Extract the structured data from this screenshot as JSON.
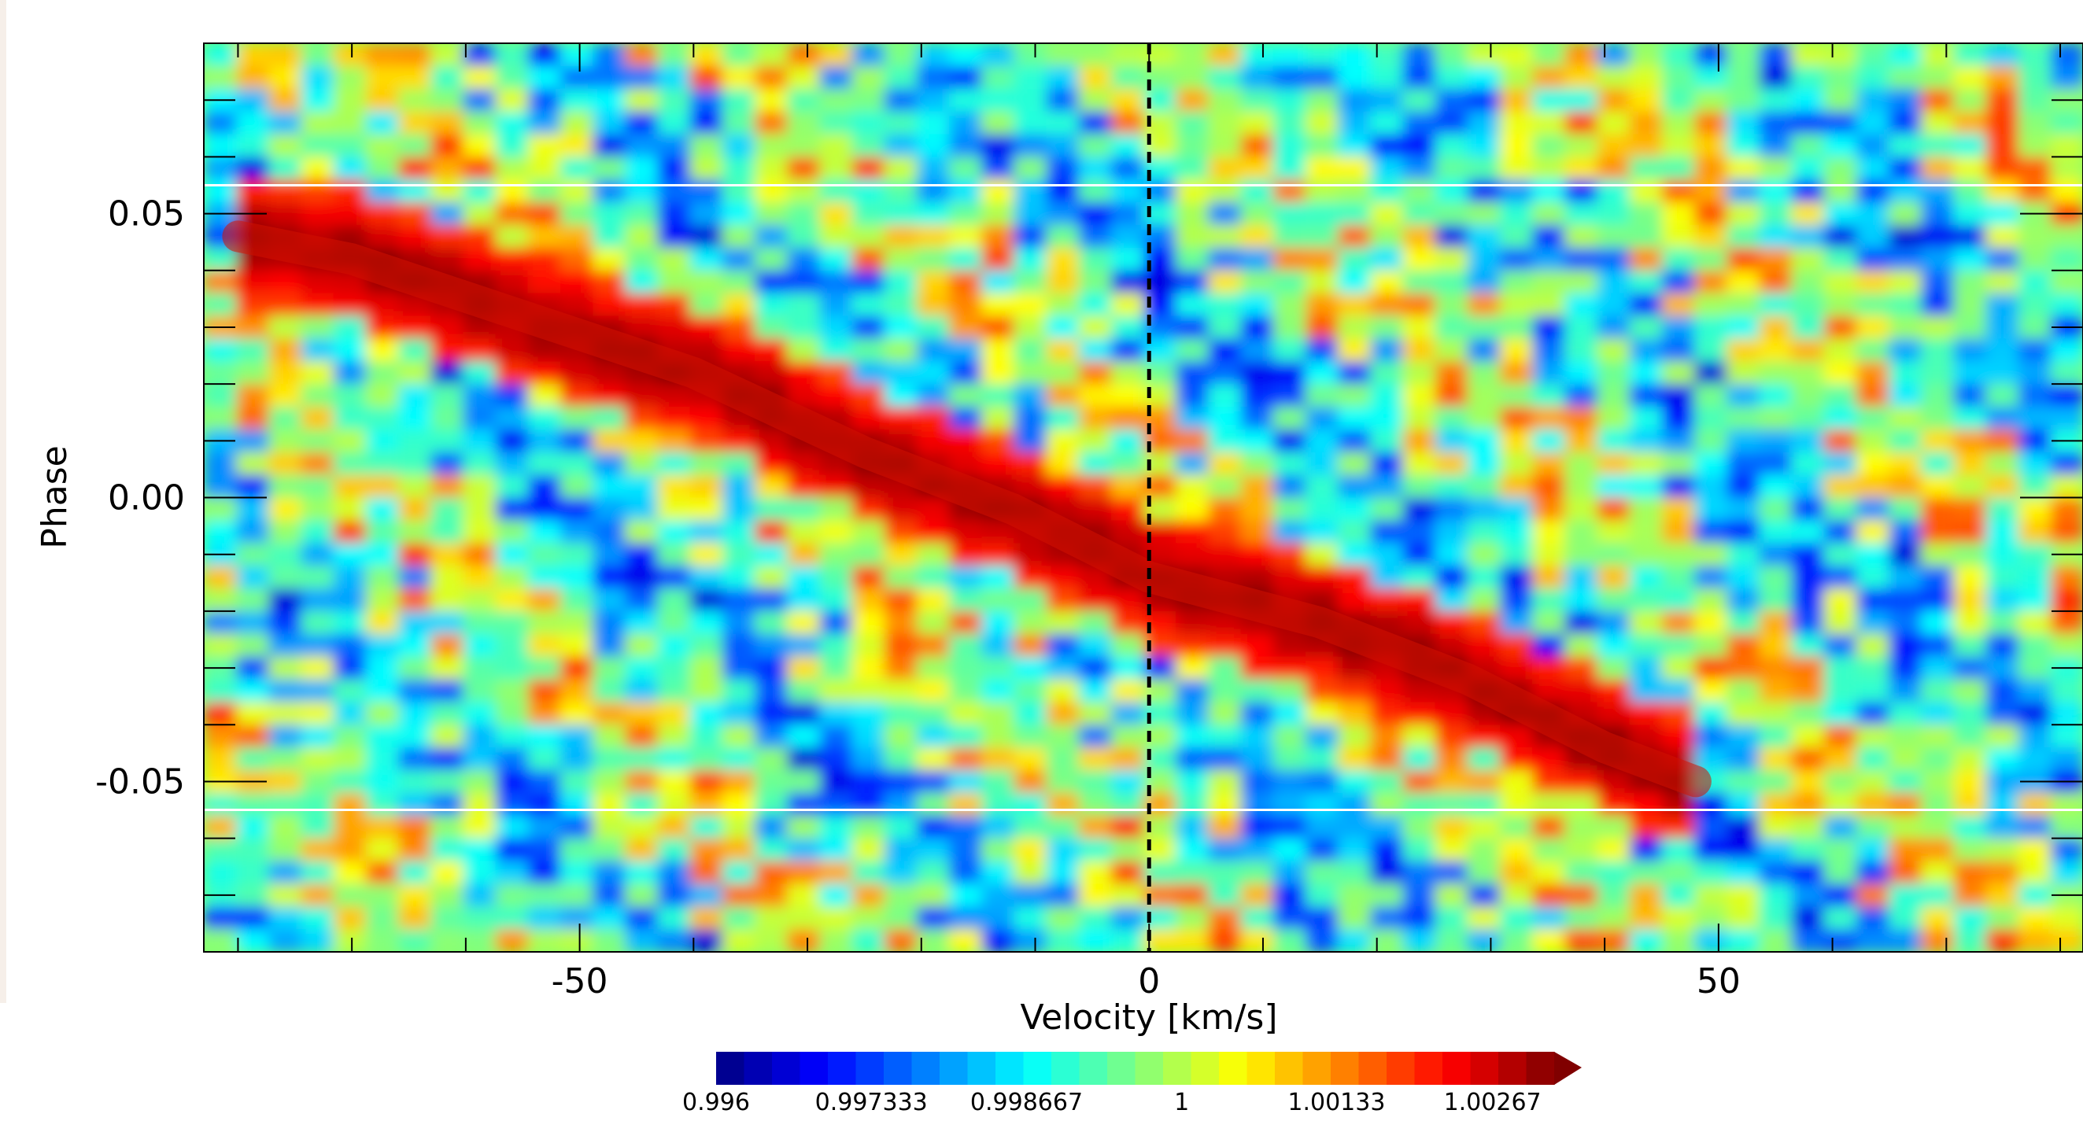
{
  "chart_data": {
    "type": "heatmap",
    "title": "",
    "xlabel": "Velocity [km/s]",
    "ylabel": "Phase",
    "xlim": [
      -83,
      82
    ],
    "ylim": [
      -0.08,
      0.08
    ],
    "x_ticks": [
      -50,
      0,
      50
    ],
    "x_tick_labels": [
      "-50",
      "0",
      "50"
    ],
    "y_ticks": [
      0.05,
      0.0,
      -0.05
    ],
    "y_tick_labels": [
      "0.05",
      "0.00",
      "-0.05"
    ],
    "reference_lines": {
      "vertical_dashed_velocity": 0,
      "horizontal_white_phase": [
        0.055,
        -0.055
      ]
    },
    "signal_trail": {
      "description_points_velocity_phase": [
        [
          -80,
          0.046
        ],
        [
          -70,
          0.042
        ],
        [
          -55,
          0.032
        ],
        [
          -40,
          0.022
        ],
        [
          -25,
          0.008
        ],
        [
          -12,
          -0.002
        ],
        [
          0,
          -0.014
        ],
        [
          15,
          -0.022
        ],
        [
          28,
          -0.032
        ],
        [
          40,
          -0.044
        ],
        [
          48,
          -0.05
        ]
      ],
      "peak_value": 1.003
    },
    "colorbar": {
      "min": 0.996,
      "max": 1.0032,
      "extend": "max",
      "tick_values": [
        0.996,
        0.997333,
        0.998667,
        1,
        1.00133,
        1.00267
      ],
      "tick_labels": [
        "0.996",
        "0.997333",
        "0.998667",
        "1",
        "1.00133",
        "1.00267"
      ],
      "n_levels": 30,
      "colormap": "jet",
      "colors": [
        "#00007f",
        "#0000e1",
        "#0044ff",
        "#00a8ff",
        "#1effda",
        "#7cff79",
        "#ffe600",
        "#ff8200",
        "#f10800",
        "#800000"
      ]
    }
  }
}
